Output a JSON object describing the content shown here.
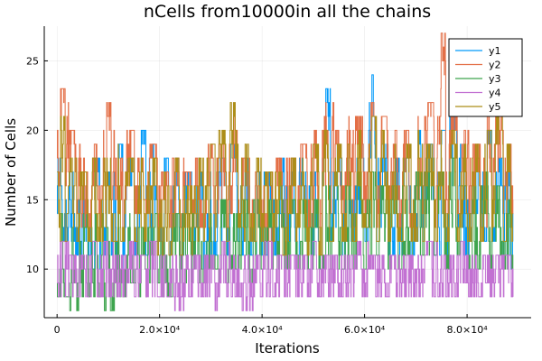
{
  "chart_data": {
    "type": "line",
    "title": "nCells from10000in all the chains",
    "xlabel": "Iterations",
    "ylabel": "Number of Cells",
    "xlim": [
      -2500,
      92500
    ],
    "ylim": [
      6.5,
      27.5
    ],
    "grid": true,
    "legend_position": "top-right",
    "x_ticks": [
      {
        "value": 0,
        "label": "0"
      },
      {
        "value": 20000,
        "label": "2.0×10⁴"
      },
      {
        "value": 40000,
        "label": "4.0×10⁴"
      },
      {
        "value": 60000,
        "label": "6.0×10⁴"
      },
      {
        "value": 80000,
        "label": "8.0×10⁴"
      }
    ],
    "y_ticks": [
      {
        "value": 10,
        "label": "10"
      },
      {
        "value": 15,
        "label": "15"
      },
      {
        "value": 20,
        "label": "20"
      },
      {
        "value": 25,
        "label": "25"
      }
    ],
    "x_segment_iterations": [
      0,
      2250,
      4500,
      6750,
      9000,
      11250,
      13500,
      15750,
      18000,
      20250,
      22500,
      24750,
      27000,
      29250,
      31500,
      33750,
      36000,
      38250,
      40500,
      42750,
      45000,
      47250,
      49500,
      51750,
      54000,
      56250,
      58500,
      60750,
      63000,
      65250,
      67500,
      69750,
      72000,
      74250,
      76500,
      78750,
      81000,
      83250,
      85500,
      87750,
      89000
    ],
    "series": [
      {
        "name": "y1",
        "color": "#009AFA",
        "segment_ranges": [
          [
            12,
            18
          ],
          [
            11,
            17
          ],
          [
            11,
            16
          ],
          [
            10,
            18
          ],
          [
            11,
            17
          ],
          [
            10,
            19
          ],
          [
            11,
            18
          ],
          [
            11,
            20
          ],
          [
            12,
            19
          ],
          [
            11,
            18
          ],
          [
            11,
            18
          ],
          [
            11,
            17
          ],
          [
            10,
            18
          ],
          [
            11,
            17
          ],
          [
            11,
            18
          ],
          [
            12,
            19
          ],
          [
            11,
            18
          ],
          [
            11,
            17
          ],
          [
            11,
            17
          ],
          [
            11,
            18
          ],
          [
            11,
            17
          ],
          [
            11,
            18
          ],
          [
            11,
            17
          ],
          [
            12,
            23
          ],
          [
            11,
            19
          ],
          [
            12,
            18
          ],
          [
            12,
            19
          ],
          [
            12,
            24
          ],
          [
            11,
            19
          ],
          [
            11,
            18
          ],
          [
            11,
            18
          ],
          [
            12,
            20
          ],
          [
            11,
            19
          ],
          [
            11,
            20
          ],
          [
            11,
            22
          ],
          [
            11,
            18
          ],
          [
            11,
            17
          ],
          [
            12,
            20
          ],
          [
            11,
            18
          ],
          [
            10,
            18
          ]
        ]
      },
      {
        "name": "y2",
        "color": "#E36F47",
        "segment_ranges": [
          [
            16,
            23
          ],
          [
            14,
            20
          ],
          [
            13,
            18
          ],
          [
            13,
            19
          ],
          [
            13,
            22
          ],
          [
            13,
            18
          ],
          [
            14,
            20
          ],
          [
            14,
            18
          ],
          [
            13,
            19
          ],
          [
            13,
            17
          ],
          [
            13,
            18
          ],
          [
            13,
            17
          ],
          [
            13,
            18
          ],
          [
            14,
            19
          ],
          [
            13,
            19
          ],
          [
            14,
            21
          ],
          [
            13,
            18
          ],
          [
            13,
            17
          ],
          [
            12,
            17
          ],
          [
            13,
            18
          ],
          [
            13,
            18
          ],
          [
            13,
            19
          ],
          [
            13,
            20
          ],
          [
            14,
            22
          ],
          [
            14,
            20
          ],
          [
            13,
            21
          ],
          [
            14,
            21
          ],
          [
            13,
            22
          ],
          [
            13,
            21
          ],
          [
            13,
            20
          ],
          [
            13,
            20
          ],
          [
            14,
            21
          ],
          [
            13,
            22
          ],
          [
            14,
            27
          ],
          [
            14,
            22
          ],
          [
            14,
            20
          ],
          [
            13,
            19
          ],
          [
            13,
            22
          ],
          [
            14,
            21
          ],
          [
            14,
            19
          ]
        ]
      },
      {
        "name": "y3",
        "color": "#3EA44E",
        "segment_ranges": [
          [
            8,
            14
          ],
          [
            7,
            13
          ],
          [
            8,
            14
          ],
          [
            8,
            14
          ],
          [
            7,
            13
          ],
          [
            8,
            14
          ],
          [
            9,
            14
          ],
          [
            8,
            13
          ],
          [
            9,
            14
          ],
          [
            8,
            13
          ],
          [
            9,
            14
          ],
          [
            9,
            14
          ],
          [
            9,
            13
          ],
          [
            10,
            14
          ],
          [
            9,
            15
          ],
          [
            10,
            14
          ],
          [
            9,
            15
          ],
          [
            10,
            15
          ],
          [
            10,
            15
          ],
          [
            10,
            16
          ],
          [
            10,
            15
          ],
          [
            10,
            15
          ],
          [
            10,
            15
          ],
          [
            10,
            16
          ],
          [
            10,
            17
          ],
          [
            10,
            16
          ],
          [
            10,
            17
          ],
          [
            11,
            17
          ],
          [
            10,
            16
          ],
          [
            10,
            16
          ],
          [
            10,
            16
          ],
          [
            11,
            17
          ],
          [
            11,
            17
          ],
          [
            10,
            17
          ],
          [
            11,
            18
          ],
          [
            10,
            16
          ],
          [
            10,
            16
          ],
          [
            10,
            17
          ],
          [
            10,
            16
          ],
          [
            10,
            15
          ]
        ]
      },
      {
        "name": "y4",
        "color": "#C271D2",
        "segment_ranges": [
          [
            8,
            12
          ],
          [
            8,
            11
          ],
          [
            8,
            11
          ],
          [
            8,
            12
          ],
          [
            8,
            12
          ],
          [
            8,
            11
          ],
          [
            8,
            12
          ],
          [
            8,
            11
          ],
          [
            8,
            12
          ],
          [
            8,
            11
          ],
          [
            7,
            11
          ],
          [
            8,
            11
          ],
          [
            8,
            11
          ],
          [
            7,
            11
          ],
          [
            8,
            12
          ],
          [
            8,
            11
          ],
          [
            7,
            11
          ],
          [
            8,
            11
          ],
          [
            8,
            12
          ],
          [
            8,
            11
          ],
          [
            8,
            11
          ],
          [
            8,
            11
          ],
          [
            8,
            12
          ],
          [
            8,
            11
          ],
          [
            8,
            11
          ],
          [
            8,
            11
          ],
          [
            8,
            12
          ],
          [
            8,
            11
          ],
          [
            8,
            11
          ],
          [
            8,
            11
          ],
          [
            8,
            11
          ],
          [
            8,
            11
          ],
          [
            8,
            12
          ],
          [
            8,
            11
          ],
          [
            8,
            11
          ],
          [
            8,
            12
          ],
          [
            8,
            11
          ],
          [
            8,
            11
          ],
          [
            8,
            11
          ],
          [
            8,
            11
          ]
        ]
      },
      {
        "name": "y5",
        "color": "#AC8D18",
        "segment_ranges": [
          [
            12,
            21
          ],
          [
            12,
            18
          ],
          [
            12,
            17
          ],
          [
            12,
            18
          ],
          [
            12,
            18
          ],
          [
            12,
            19
          ],
          [
            12,
            18
          ],
          [
            12,
            18
          ],
          [
            11,
            18
          ],
          [
            11,
            17
          ],
          [
            11,
            18
          ],
          [
            11,
            16
          ],
          [
            12,
            18
          ],
          [
            12,
            19
          ],
          [
            12,
            20
          ],
          [
            13,
            22
          ],
          [
            12,
            19
          ],
          [
            12,
            18
          ],
          [
            12,
            17
          ],
          [
            11,
            17
          ],
          [
            12,
            18
          ],
          [
            11,
            18
          ],
          [
            11,
            19
          ],
          [
            12,
            20
          ],
          [
            12,
            19
          ],
          [
            12,
            19
          ],
          [
            13,
            20
          ],
          [
            12,
            21
          ],
          [
            12,
            20
          ],
          [
            12,
            19
          ],
          [
            12,
            19
          ],
          [
            12,
            20
          ],
          [
            12,
            19
          ],
          [
            12,
            20
          ],
          [
            12,
            20
          ],
          [
            12,
            19
          ],
          [
            12,
            19
          ],
          [
            12,
            20
          ],
          [
            12,
            22
          ],
          [
            12,
            19
          ]
        ]
      }
    ]
  }
}
